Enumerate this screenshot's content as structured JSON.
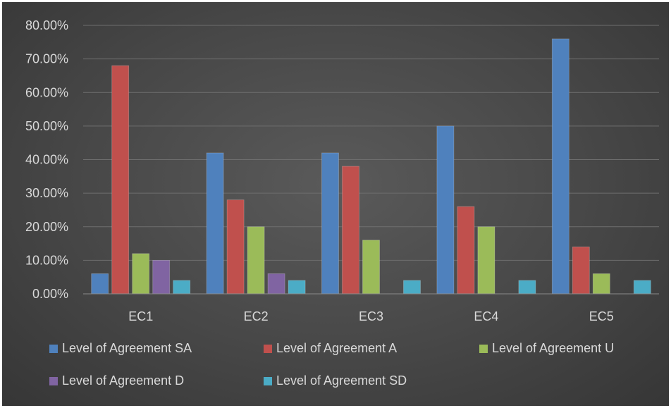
{
  "chart_data": {
    "type": "bar",
    "categories": [
      "EC1",
      "EC2",
      "EC3",
      "EC4",
      "EC5"
    ],
    "series": [
      {
        "name": "Level of Agreement SA",
        "color": "#4f81bd",
        "values": [
          6,
          42,
          42,
          50,
          76
        ]
      },
      {
        "name": "Level of Agreement A",
        "color": "#c0504d",
        "values": [
          68,
          28,
          38,
          26,
          14
        ]
      },
      {
        "name": "Level of Agreement U",
        "color": "#9bbb59",
        "values": [
          12,
          20,
          16,
          20,
          6
        ]
      },
      {
        "name": "Level of Agreement D",
        "color": "#8064a2",
        "values": [
          10,
          6,
          0,
          0,
          0
        ]
      },
      {
        "name": "Level of Agreement SD",
        "color": "#4bacc6",
        "values": [
          4,
          4,
          4,
          4,
          4
        ]
      }
    ],
    "y_ticks": [
      "0.00%",
      "10.00%",
      "20.00%",
      "30.00%",
      "40.00%",
      "50.00%",
      "60.00%",
      "70.00%",
      "80.00%"
    ],
    "ylim": [
      0,
      80
    ],
    "y_unit": "%",
    "grid": true,
    "legend_position": "bottom",
    "title": "",
    "xlabel": "",
    "ylabel": ""
  }
}
